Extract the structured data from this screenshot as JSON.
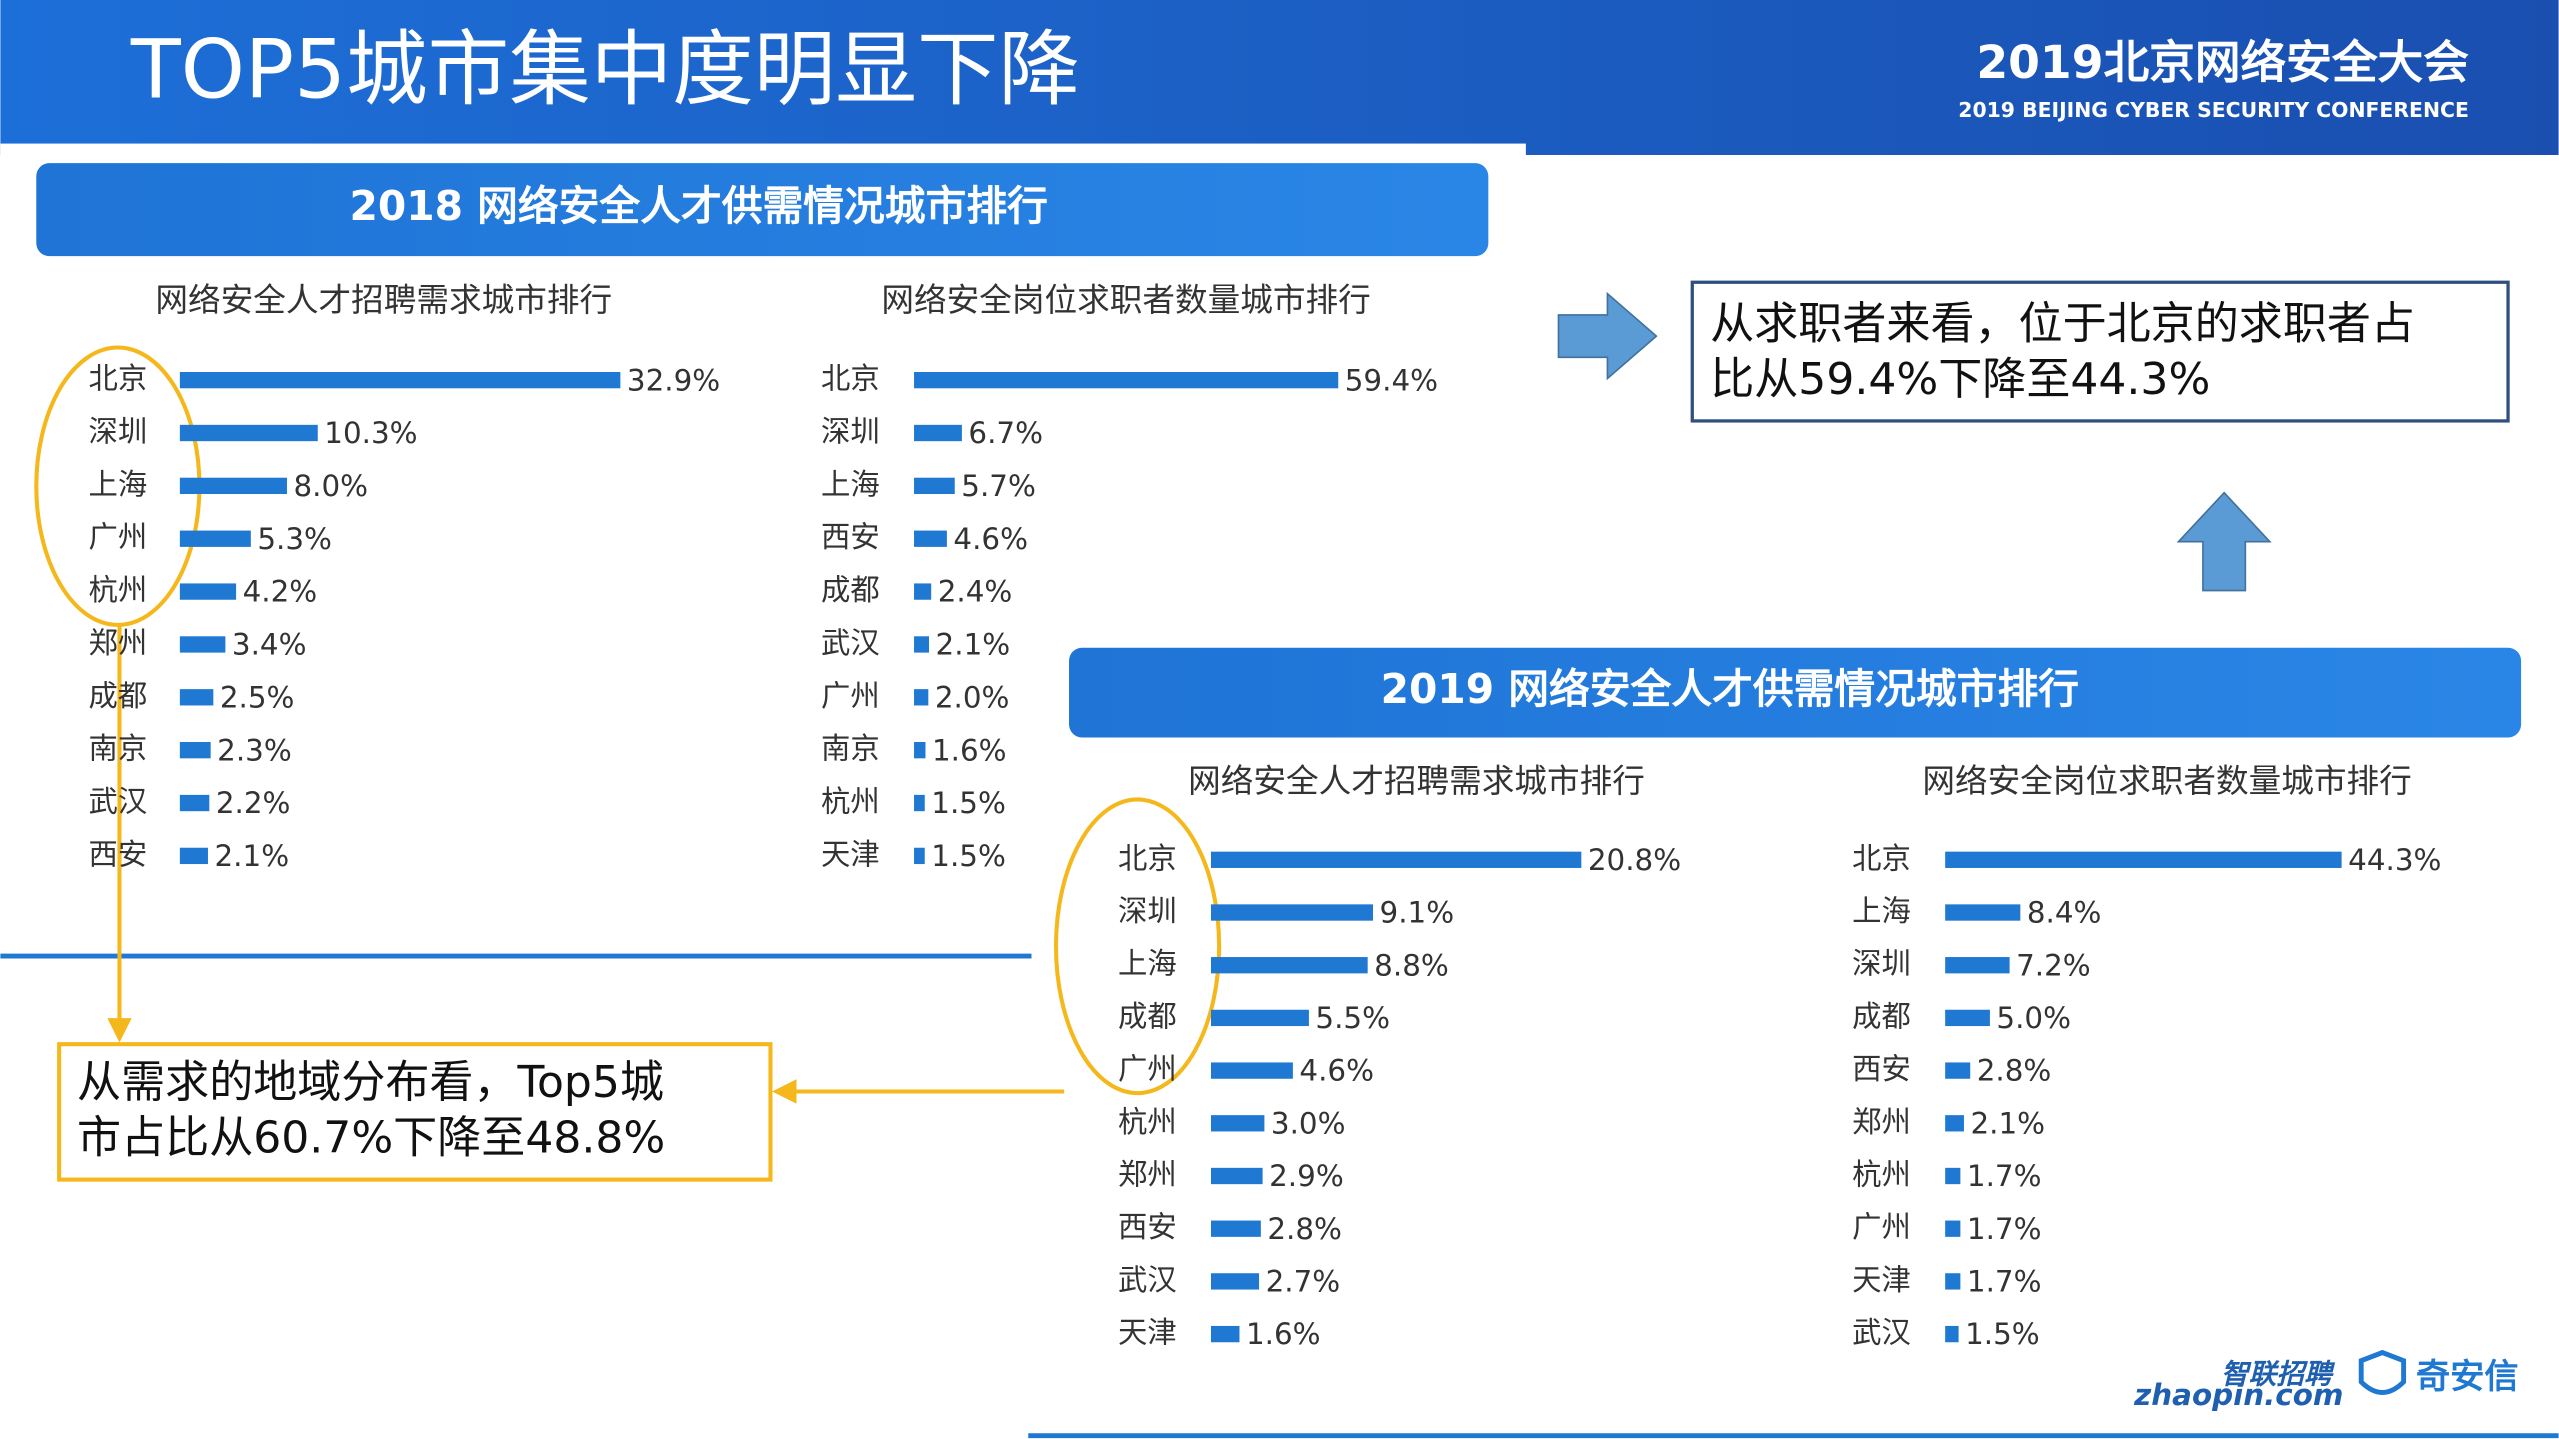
{
  "slide": {
    "title": "TOP5城市集中度明显下降",
    "conference_cn": "2019北京网络安全大会",
    "conference_en": "2019 BEIJING CYBER SECURITY CONFERENCE",
    "panels": [
      {
        "title": "2018 网络安全人才供需情况城市排行"
      },
      {
        "title": "2019 网络安全人才供需情况城市排行"
      }
    ],
    "callout_seekers": [
      "从求职者来看，位于北京的求职者占",
      "比从59.4%下降至44.3%"
    ],
    "callout_demand": [
      "从需求的地域分布看，Top5城",
      "市占比从60.7%下降至48.8%"
    ],
    "logos": [
      "智联招聘",
      "zhaopin.com",
      "奇安信"
    ]
  },
  "chart_data": [
    {
      "type": "bar",
      "title": "网络安全人才招聘需求城市排行",
      "color": "#1f78d1",
      "categories": [
        "北京",
        "深圳",
        "上海",
        "广州",
        "杭州",
        "郑州",
        "成都",
        "南京",
        "武汉",
        "西安"
      ],
      "values": [
        32.9,
        10.3,
        8.0,
        5.3,
        4.2,
        3.4,
        2.5,
        2.3,
        2.2,
        2.1
      ],
      "value_labels": [
        "32.9%",
        "10.3%",
        "8.0%",
        "5.3%",
        "4.2%",
        "3.4%",
        "2.5%",
        "2.3%",
        "2.2%",
        "2.1%"
      ]
    },
    {
      "type": "bar",
      "title": "网络安全岗位求职者数量城市排行",
      "color": "#1f78d1",
      "categories": [
        "北京",
        "深圳",
        "上海",
        "西安",
        "成都",
        "武汉",
        "广州",
        "南京",
        "杭州",
        "天津"
      ],
      "values": [
        59.4,
        6.7,
        5.7,
        4.6,
        2.4,
        2.1,
        2.0,
        1.6,
        1.5,
        1.5
      ],
      "value_labels": [
        "59.4%",
        "6.7%",
        "5.7%",
        "4.6%",
        "2.4%",
        "2.1%",
        "2.0%",
        "1.6%",
        "1.5%",
        "1.5%"
      ]
    },
    {
      "type": "bar",
      "title": "网络安全人才招聘需求城市排行",
      "color": "#1f78d1",
      "categories": [
        "北京",
        "深圳",
        "上海",
        "成都",
        "广州",
        "杭州",
        "郑州",
        "西安",
        "武汉",
        "天津"
      ],
      "values": [
        20.8,
        9.1,
        8.8,
        5.5,
        4.6,
        3.0,
        2.9,
        2.8,
        2.7,
        1.6
      ],
      "value_labels": [
        "20.8%",
        "9.1%",
        "8.8%",
        "5.5%",
        "4.6%",
        "3.0%",
        "2.9%",
        "2.8%",
        "2.7%",
        "1.6%"
      ]
    },
    {
      "type": "bar",
      "title": "网络安全岗位求职者数量城市排行",
      "color": "#1f78d1",
      "categories": [
        "北京",
        "上海",
        "深圳",
        "成都",
        "西安",
        "郑州",
        "杭州",
        "广州",
        "天津",
        "武汉"
      ],
      "values": [
        44.3,
        8.4,
        7.2,
        5.0,
        2.8,
        2.1,
        1.7,
        1.7,
        1.7,
        1.5
      ],
      "value_labels": [
        "44.3%",
        "8.4%",
        "7.2%",
        "5.0%",
        "2.8%",
        "2.1%",
        "1.7%",
        "1.7%",
        "1.7%",
        "1.5%"
      ]
    }
  ]
}
